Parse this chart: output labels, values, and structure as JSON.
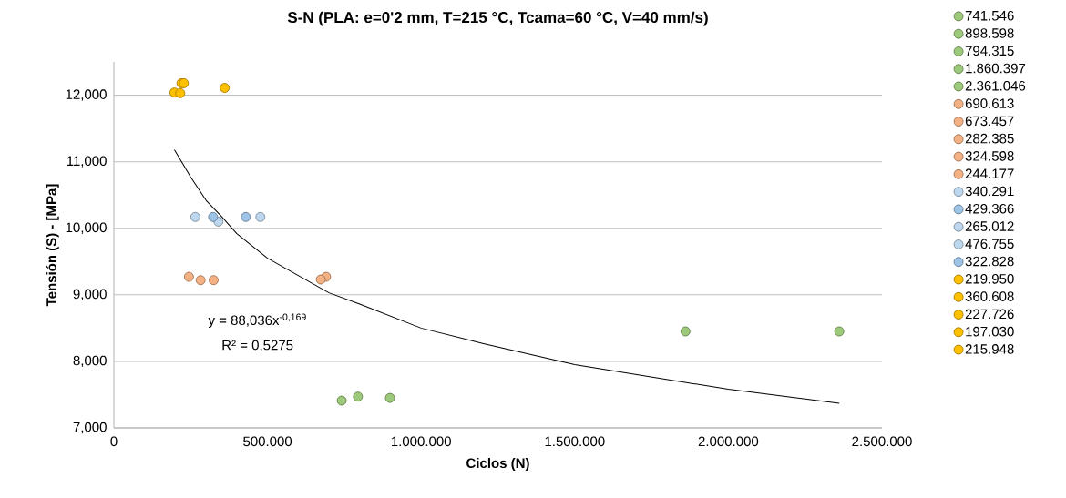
{
  "chart_data": {
    "type": "scatter",
    "title": "S-N (PLA: e=0'2 mm, T=215 °C, Tcama=60 °C, V=40 mm/s)",
    "xlabel": "Ciclos (N)",
    "ylabel": "Tensión (S) - [MPa]",
    "xlim": [
      0,
      2500000
    ],
    "ylim": [
      7,
      12.5
    ],
    "xticks": [
      {
        "value": 0,
        "label": "0"
      },
      {
        "value": 500000,
        "label": "500.000"
      },
      {
        "value": 1000000,
        "label": "1.000.000"
      },
      {
        "value": 1500000,
        "label": "1.500.000"
      },
      {
        "value": 2000000,
        "label": "2.000.000"
      },
      {
        "value": 2500000,
        "label": "2.500.000"
      }
    ],
    "yticks": [
      {
        "value": 7,
        "label": "7,000"
      },
      {
        "value": 8,
        "label": "8,000"
      },
      {
        "value": 9,
        "label": "9,000"
      },
      {
        "value": 10,
        "label": "10,000"
      },
      {
        "value": 11,
        "label": "11,000"
      },
      {
        "value": 12,
        "label": "12,000"
      }
    ],
    "grid": "y",
    "legend": "right",
    "marker": "circle",
    "annotations": [
      "y = 88,036x$^{-0,169}$",
      "R² = 0,5275"
    ],
    "series": [
      {
        "name": "741.546",
        "color": "#9dc97a",
        "x": [
          741546
        ],
        "values": [
          7.41
        ]
      },
      {
        "name": "898.598",
        "color": "#9dc97a",
        "x": [
          898598
        ],
        "values": [
          7.45
        ]
      },
      {
        "name": "794.315",
        "color": "#9dc97a",
        "x": [
          794315
        ],
        "values": [
          7.47
        ]
      },
      {
        "name": "1.860.397",
        "color": "#9dc97a",
        "x": [
          1860397
        ],
        "values": [
          8.45
        ]
      },
      {
        "name": "2.361.046",
        "color": "#9dc97a",
        "x": [
          2361046
        ],
        "values": [
          8.45
        ]
      },
      {
        "name": "690.613",
        "color": "#f4b183",
        "x": [
          690613
        ],
        "values": [
          9.27
        ]
      },
      {
        "name": "673.457",
        "color": "#f4b183",
        "x": [
          673457
        ],
        "values": [
          9.23
        ]
      },
      {
        "name": "282.385",
        "color": "#f4b183",
        "x": [
          282385
        ],
        "values": [
          9.22
        ]
      },
      {
        "name": "324.598",
        "color": "#f4b183",
        "x": [
          324598
        ],
        "values": [
          9.22
        ]
      },
      {
        "name": "244.177",
        "color": "#f4b183",
        "x": [
          244177
        ],
        "values": [
          9.27
        ]
      },
      {
        "name": "340.291",
        "color": "#bdd7ee",
        "x": [
          340291
        ],
        "values": [
          10.1
        ]
      },
      {
        "name": "429.366",
        "color": "#9dc3e6",
        "x": [
          429366
        ],
        "values": [
          10.17
        ]
      },
      {
        "name": "265.012",
        "color": "#bdd7ee",
        "x": [
          265012
        ],
        "values": [
          10.17
        ]
      },
      {
        "name": "476.755",
        "color": "#bdd7ee",
        "x": [
          476755
        ],
        "values": [
          10.17
        ]
      },
      {
        "name": "322.828",
        "color": "#9dc3e6",
        "x": [
          322828
        ],
        "values": [
          10.17
        ]
      },
      {
        "name": "219.950",
        "color": "#ffc000",
        "x": [
          219950
        ],
        "values": [
          12.18
        ]
      },
      {
        "name": "360.608",
        "color": "#ffc000",
        "x": [
          360608
        ],
        "values": [
          12.11
        ]
      },
      {
        "name": "227.726",
        "color": "#ffc000",
        "x": [
          227726
        ],
        "values": [
          12.18
        ]
      },
      {
        "name": "197.030",
        "color": "#ffc000",
        "x": [
          197030
        ],
        "values": [
          12.04
        ]
      },
      {
        "name": "215.948",
        "color": "#ffc000",
        "x": [
          215948
        ],
        "values": [
          12.03
        ]
      },
      {
        "type": "line",
        "marker": "none",
        "color": "#000000",
        "x": [
          197030,
          250000,
          300000,
          350000,
          400000,
          500000,
          600000,
          700000,
          800000,
          1000000,
          1200000,
          1500000,
          2000000,
          2361046
        ],
        "values": [
          11.18,
          10.77,
          10.42,
          10.18,
          9.92,
          9.55,
          9.29,
          9.03,
          8.86,
          8.5,
          8.27,
          7.95,
          7.58,
          7.37
        ]
      }
    ]
  }
}
